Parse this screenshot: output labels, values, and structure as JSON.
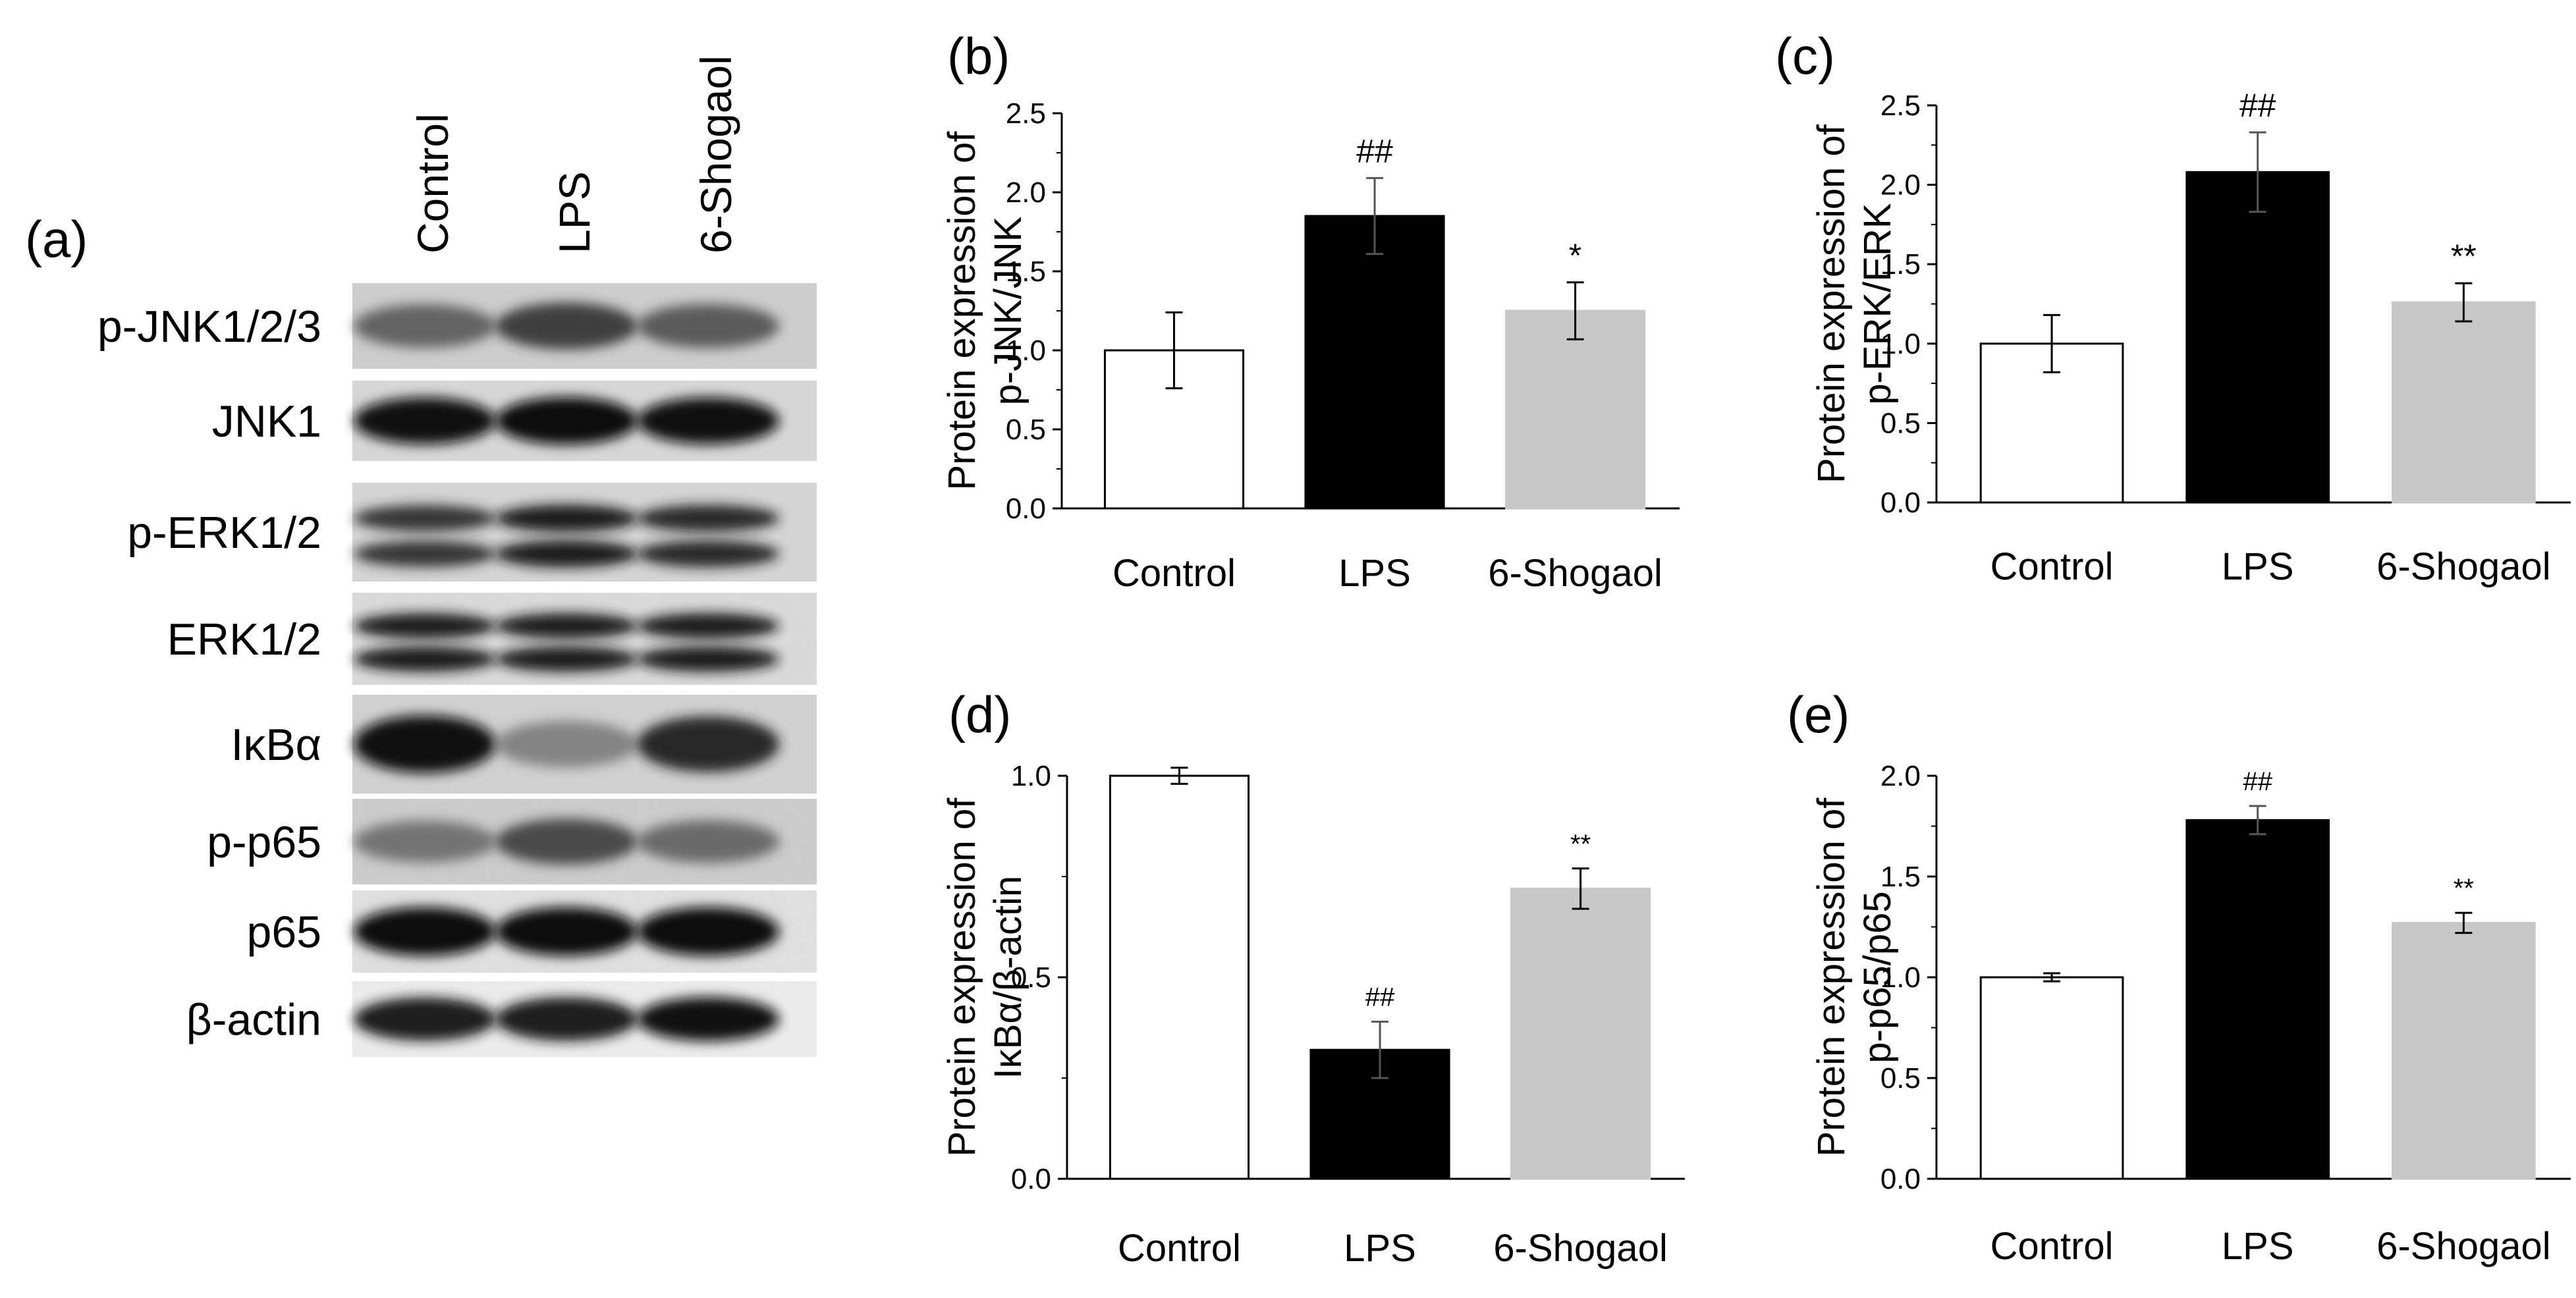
{
  "figure": {
    "panel_a": {
      "letter": "(a)",
      "lanes": [
        "Control",
        "LPS",
        "6-Shogaol"
      ],
      "blots": [
        {
          "label": "p-JNK1/2/3",
          "bands": 1,
          "intensity": [
            0.55,
            0.75,
            0.6
          ],
          "bg": "#cfcfcf"
        },
        {
          "label": "JNK1",
          "bands": 1,
          "intensity": [
            0.95,
            1.0,
            0.95
          ],
          "bg": "#d9d9d9"
        },
        {
          "label": "p-ERK1/2",
          "bands": 2,
          "intensity": [
            0.8,
            0.9,
            0.85
          ],
          "bg": "#d6d6d6"
        },
        {
          "label": "ERK1/2",
          "bands": 2,
          "intensity": [
            0.9,
            0.9,
            0.92
          ],
          "bg": "#dcdcdc"
        },
        {
          "label": "IκBα",
          "bands": 1,
          "intensity": [
            0.95,
            0.35,
            0.85
          ],
          "bg": "#d2d2d2"
        },
        {
          "label": "p-p65",
          "bands": 1,
          "intensity": [
            0.45,
            0.7,
            0.5
          ],
          "bg": "#cdcdcd"
        },
        {
          "label": "p65",
          "bands": 1,
          "intensity": [
            1.0,
            1.0,
            1.0
          ],
          "bg": "#e2e2e2"
        },
        {
          "label": "β-actin",
          "bands": 1,
          "intensity": [
            0.9,
            0.92,
            0.95
          ],
          "bg": "#efefef"
        }
      ]
    }
  },
  "chart_data": [
    {
      "panel": "(b)",
      "type": "bar",
      "categories": [
        "Control",
        "LPS",
        "6-Shogaol"
      ],
      "values": [
        1.0,
        1.85,
        1.25
      ],
      "errors": [
        0.24,
        0.24,
        0.18
      ],
      "significance": [
        "",
        "##",
        "*"
      ],
      "bar_colors": [
        "#ffffff",
        "#000000",
        "#c8c8c8"
      ],
      "ylabel": [
        "Protein expression of",
        "p-JNK/JNK"
      ],
      "ylim": [
        0,
        2.5
      ],
      "yticks": [
        "0.0",
        "0.5",
        "1.0",
        "1.5",
        "2.0",
        "2.5"
      ]
    },
    {
      "panel": "(c)",
      "type": "bar",
      "categories": [
        "Control",
        "LPS",
        "6-Shogaol"
      ],
      "values": [
        1.0,
        2.08,
        1.26
      ],
      "errors": [
        0.18,
        0.25,
        0.12
      ],
      "significance": [
        "",
        "##",
        "**"
      ],
      "bar_colors": [
        "#ffffff",
        "#000000",
        "#c8c8c8"
      ],
      "ylabel": [
        "Protein expression of",
        "p-ERK/ERK"
      ],
      "ylim": [
        0,
        2.5
      ],
      "yticks": [
        "0.0",
        "0.5",
        "1.0",
        "1.5",
        "2.0",
        "2.5"
      ]
    },
    {
      "panel": "(d)",
      "type": "bar",
      "categories": [
        "Control",
        "LPS",
        "6-Shogaol"
      ],
      "values": [
        1.0,
        0.32,
        0.72
      ],
      "errors": [
        0.02,
        0.07,
        0.05
      ],
      "significance": [
        "",
        "##",
        "**"
      ],
      "bar_colors": [
        "#ffffff",
        "#000000",
        "#c8c8c8"
      ],
      "ylabel": [
        "Protein expression of",
        "IκBα/β-actin"
      ],
      "ylim": [
        0,
        1.0
      ],
      "yticks": [
        "0.0",
        "0.5",
        "1.0"
      ]
    },
    {
      "panel": "(e)",
      "type": "bar",
      "categories": [
        "Control",
        "LPS",
        "6-Shogaol"
      ],
      "values": [
        1.0,
        1.78,
        1.27
      ],
      "errors": [
        0.02,
        0.07,
        0.05
      ],
      "significance": [
        "",
        "##",
        "**"
      ],
      "bar_colors": [
        "#ffffff",
        "#000000",
        "#c8c8c8"
      ],
      "ylabel": [
        "Protein expression of",
        "p-p65/p65"
      ],
      "ylim": [
        0,
        2.0
      ],
      "yticks": [
        "0.0",
        "0.5",
        "1.0",
        "1.5",
        "2.0"
      ]
    }
  ]
}
